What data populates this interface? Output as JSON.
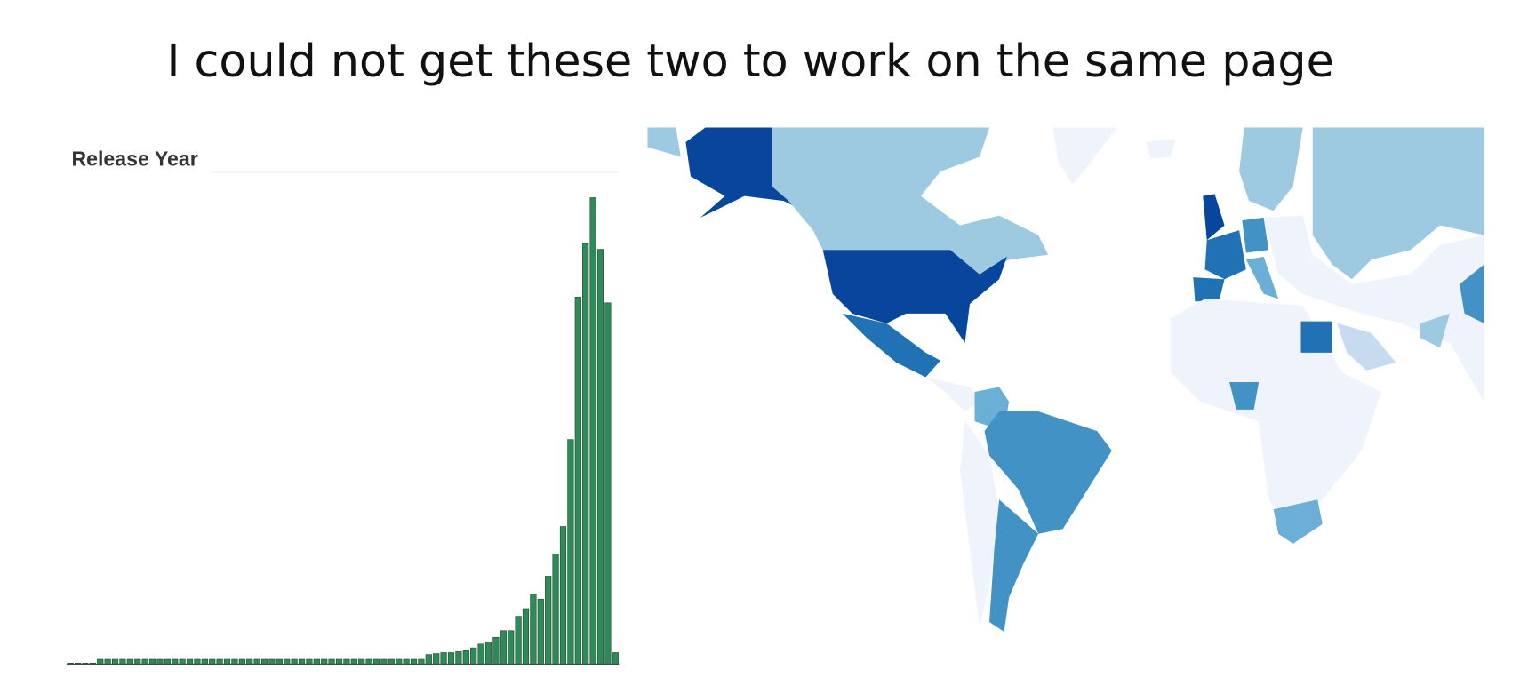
{
  "slide_title": "I could not get these two to work on the same page",
  "chart_data": {
    "type": "bar",
    "title": "Release Year",
    "color": "#2e8b57",
    "values": [
      1,
      1,
      1,
      1,
      5,
      5,
      5,
      5,
      5,
      5,
      5,
      5,
      5,
      5,
      5,
      5,
      5,
      5,
      5,
      5,
      5,
      5,
      5,
      5,
      5,
      5,
      5,
      5,
      5,
      5,
      5,
      5,
      5,
      5,
      5,
      5,
      5,
      5,
      5,
      5,
      5,
      5,
      5,
      5,
      5,
      5,
      5,
      5,
      10,
      11,
      12,
      12,
      13,
      14,
      17,
      21,
      23,
      28,
      35,
      35,
      50,
      58,
      73,
      68,
      92,
      115,
      144,
      235,
      384,
      440,
      488,
      434,
      378,
      12
    ],
    "ylim": [
      0,
      500
    ]
  }
}
